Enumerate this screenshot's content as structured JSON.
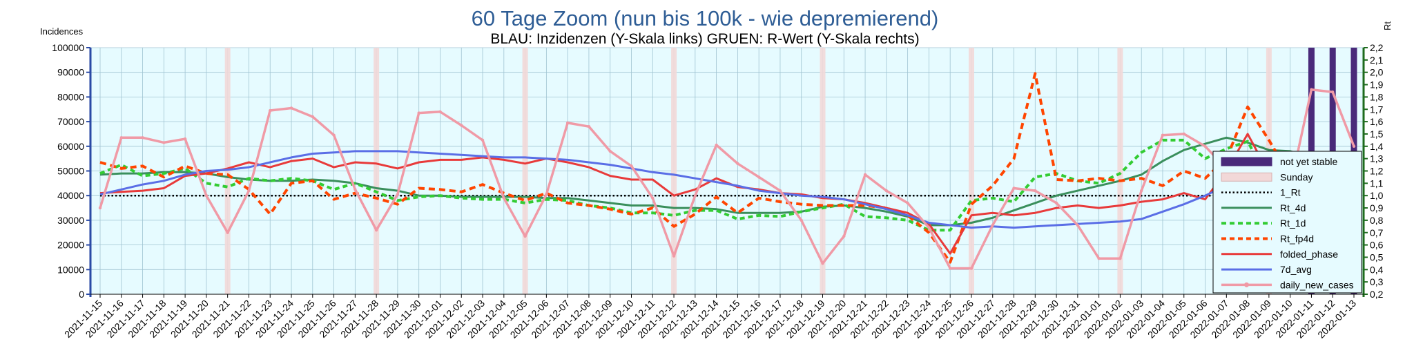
{
  "chart_data": {
    "type": "line",
    "title": "60 Tage Zoom  (nun bis 100k - wie depremierend)",
    "subtitle": "BLAU: Inzidenzen (Y-Skala links)     GRUEN: R-Wert (Y-Skala rechts)",
    "ylabel_left": "Incidences",
    "ylabel_right": "Rt",
    "ylim_left": [
      0,
      100000
    ],
    "ylim_right": [
      0.2,
      2.2
    ],
    "yticks_left": [
      "0",
      "10000",
      "20000",
      "30000",
      "40000",
      "50000",
      "60000",
      "70000",
      "80000",
      "90000",
      "100000"
    ],
    "yticks_right": [
      "0,2",
      "0,3",
      "0,4",
      "0,5",
      "0,6",
      "0,7",
      "0,8",
      "0,9",
      "1,0",
      "1,1",
      "1,2",
      "1,3",
      "1,4",
      "1,5",
      "1,6",
      "1,7",
      "1,8",
      "1,9",
      "2,0",
      "2,1",
      "2,2"
    ],
    "categories": [
      "2021-11-15",
      "2021-11-16",
      "2021-11-17",
      "2021-11-18",
      "2021-11-19",
      "2021-11-20",
      "2021-11-21",
      "2021-11-22",
      "2021-11-23",
      "2021-11-24",
      "2021-11-25",
      "2021-11-26",
      "2021-11-27",
      "2021-11-28",
      "2021-11-29",
      "2021-11-30",
      "2021-12-01",
      "2021-12-02",
      "2021-12-03",
      "2021-12-04",
      "2021-12-05",
      "2021-12-06",
      "2021-12-07",
      "2021-12-08",
      "2021-12-09",
      "2021-12-10",
      "2021-12-11",
      "2021-12-12",
      "2021-12-13",
      "2021-12-14",
      "2021-12-15",
      "2021-12-16",
      "2021-12-17",
      "2021-12-18",
      "2021-12-19",
      "2021-12-20",
      "2021-12-21",
      "2021-12-22",
      "2021-12-23",
      "2021-12-24",
      "2021-12-25",
      "2021-12-26",
      "2021-12-27",
      "2021-12-28",
      "2021-12-29",
      "2021-12-30",
      "2021-12-31",
      "2022-01-01",
      "2022-01-02",
      "2022-01-03",
      "2022-01-04",
      "2022-01-05",
      "2022-01-06",
      "2022-01-07",
      "2022-01-08",
      "2022-01-09",
      "2022-01-10",
      "2022-01-11",
      "2022-01-12",
      "2022-01-13"
    ],
    "sundays": [
      "2021-11-21",
      "2021-11-28",
      "2021-12-05",
      "2021-12-12",
      "2021-12-19",
      "2021-12-26",
      "2022-01-02",
      "2022-01-09"
    ],
    "not_yet_stable": [
      "2022-01-11",
      "2022-01-12",
      "2022-01-13"
    ],
    "series": [
      {
        "name": "1_Rt",
        "axis": "right",
        "color": "#000000",
        "style": "dotted",
        "values": [
          1.0,
          1.0,
          1.0,
          1.0,
          1.0,
          1.0,
          1.0,
          1.0,
          1.0,
          1.0,
          1.0,
          1.0,
          1.0,
          1.0,
          1.0,
          1.0,
          1.0,
          1.0,
          1.0,
          1.0,
          1.0,
          1.0,
          1.0,
          1.0,
          1.0,
          1.0,
          1.0,
          1.0,
          1.0,
          1.0,
          1.0,
          1.0,
          1.0,
          1.0,
          1.0,
          1.0,
          1.0,
          1.0,
          1.0,
          1.0,
          1.0,
          1.0,
          1.0,
          1.0,
          1.0,
          1.0,
          1.0,
          1.0,
          1.0,
          1.0,
          1.0,
          1.0,
          1.0,
          1.0,
          1.0,
          1.0,
          1.0,
          1.0,
          1.0,
          1.0
        ]
      },
      {
        "name": "Rt_4d",
        "axis": "right",
        "color": "#3a8f5c",
        "style": "solid",
        "values": [
          1.17,
          1.18,
          1.18,
          1.19,
          1.19,
          1.18,
          1.15,
          1.13,
          1.12,
          1.12,
          1.13,
          1.12,
          1.1,
          1.06,
          1.04,
          1.0,
          1.0,
          0.99,
          0.99,
          0.99,
          0.99,
          0.98,
          0.98,
          0.96,
          0.94,
          0.92,
          0.92,
          0.9,
          0.9,
          0.89,
          0.86,
          0.86,
          0.86,
          0.87,
          0.91,
          0.92,
          0.9,
          0.87,
          0.83,
          0.76,
          0.76,
          0.78,
          0.82,
          0.88,
          0.94,
          1.0,
          1.04,
          1.08,
          1.12,
          1.17,
          1.28,
          1.37,
          1.42,
          1.47,
          1.43,
          1.37,
          1.36,
          1.31,
          1.25,
          1.18
        ]
      },
      {
        "name": "Rt_1d",
        "axis": "right",
        "color": "#33cc33",
        "style": "dashed",
        "values": [
          1.18,
          1.25,
          1.16,
          1.18,
          1.22,
          1.1,
          1.07,
          1.14,
          1.12,
          1.14,
          1.12,
          1.05,
          1.1,
          1.03,
          0.96,
          0.99,
          1.0,
          0.98,
          0.97,
          0.97,
          0.94,
          0.97,
          0.96,
          0.92,
          0.9,
          0.86,
          0.86,
          0.84,
          0.88,
          0.88,
          0.81,
          0.84,
          0.83,
          0.87,
          0.9,
          0.93,
          0.83,
          0.82,
          0.8,
          0.72,
          0.72,
          0.96,
          0.98,
          0.95,
          1.15,
          1.18,
          1.12,
          1.1,
          1.18,
          1.35,
          1.45,
          1.45,
          1.3,
          1.38,
          1.44,
          1.12,
          1.2,
          1.28,
          1.18,
          1.04
        ]
      },
      {
        "name": "Rt_fp4d",
        "axis": "right",
        "color": "#ff4500",
        "style": "dashed",
        "values": [
          1.27,
          1.22,
          1.24,
          1.15,
          1.24,
          1.18,
          1.17,
          1.05,
          0.85,
          1.1,
          1.12,
          0.97,
          1.02,
          0.98,
          0.93,
          1.06,
          1.05,
          1.03,
          1.09,
          1.02,
          0.96,
          1.02,
          0.94,
          0.92,
          0.89,
          0.85,
          0.9,
          0.75,
          0.85,
          0.99,
          0.86,
          0.98,
          0.95,
          0.93,
          0.92,
          0.92,
          0.92,
          0.9,
          0.84,
          0.7,
          0.46,
          0.93,
          1.08,
          1.3,
          1.99,
          1.13,
          1.12,
          1.14,
          1.12,
          1.14,
          1.08,
          1.2,
          1.14,
          1.3,
          1.72,
          1.45,
          1.16,
          0.98,
          0.76,
          0.88
        ]
      },
      {
        "name": "folded_phase",
        "axis": "left",
        "color": "#e83a3a",
        "style": "solid",
        "values": [
          41000,
          41500,
          42000,
          43000,
          48000,
          49000,
          51000,
          53500,
          51500,
          54000,
          55000,
          51500,
          53500,
          53000,
          51000,
          53500,
          54500,
          54500,
          55500,
          54500,
          53000,
          55000,
          53500,
          51500,
          48000,
          46500,
          46500,
          40000,
          42500,
          47000,
          43500,
          42500,
          41000,
          40500,
          39000,
          38500,
          37000,
          35000,
          33000,
          28500,
          16500,
          32000,
          33000,
          32000,
          33000,
          35000,
          36000,
          35000,
          36000,
          37500,
          38500,
          41000,
          38500,
          50000,
          65000,
          49000,
          49000,
          46500,
          48500,
          44000
        ]
      },
      {
        "name": "7d_avg",
        "axis": "left",
        "color": "#5a6ee6",
        "style": "solid",
        "values": [
          40500,
          42500,
          44500,
          46000,
          48500,
          50000,
          50500,
          51500,
          53500,
          55500,
          57000,
          57500,
          58000,
          58000,
          58000,
          57500,
          57000,
          56500,
          56000,
          55500,
          55500,
          55000,
          54500,
          53500,
          52500,
          51000,
          49500,
          48500,
          47000,
          45500,
          44000,
          42000,
          41000,
          40000,
          39500,
          38500,
          36500,
          34500,
          32000,
          29000,
          28000,
          27000,
          27500,
          27000,
          27500,
          28000,
          28500,
          29000,
          29500,
          30500,
          33500,
          36500,
          40000,
          44000,
          47500,
          48000,
          51000,
          53500,
          56000,
          56000
        ]
      },
      {
        "name": "daily_new_cases",
        "axis": "left",
        "color": "#f09aa6",
        "style": "solid-marker",
        "values": [
          35000,
          63500,
          63500,
          61500,
          63000,
          40000,
          25000,
          42000,
          74500,
          75500,
          72000,
          64500,
          42500,
          26000,
          40500,
          73500,
          74000,
          68500,
          62500,
          39000,
          23500,
          40500,
          69500,
          68000,
          58000,
          52000,
          39000,
          15500,
          40000,
          60500,
          53000,
          47500,
          42000,
          30000,
          12500,
          23500,
          48500,
          42000,
          37000,
          27000,
          10500,
          10500,
          28000,
          43000,
          42000,
          37000,
          28000,
          14500,
          14500,
          42000,
          64500,
          65000,
          60000,
          51000,
          37000,
          24000,
          43500,
          83000,
          82000,
          60000
        ]
      }
    ]
  },
  "legend": [
    {
      "label": "not yet stable",
      "kind": "bar",
      "color": "#4a2a7a"
    },
    {
      "label": "Sunday",
      "kind": "bar",
      "color": "#f2d8d8"
    },
    {
      "label": "1_Rt",
      "kind": "dotted",
      "color": "#000000"
    },
    {
      "label": "Rt_4d",
      "kind": "solid",
      "color": "#3a8f5c"
    },
    {
      "label": "Rt_1d",
      "kind": "dashed",
      "color": "#33cc33"
    },
    {
      "label": "Rt_fp4d",
      "kind": "dashed",
      "color": "#ff4500"
    },
    {
      "label": "folded_phase",
      "kind": "solid",
      "color": "#e83a3a"
    },
    {
      "label": "7d_avg",
      "kind": "solid",
      "color": "#5a6ee6"
    },
    {
      "label": "daily_new_cases",
      "kind": "marker",
      "color": "#f09aa6"
    }
  ],
  "colors": {
    "plot_bg": "#e6fbff",
    "grid": "#9fc3d1",
    "left_axis": "#2a4aa5",
    "right_axis": "#1e6b1e"
  }
}
